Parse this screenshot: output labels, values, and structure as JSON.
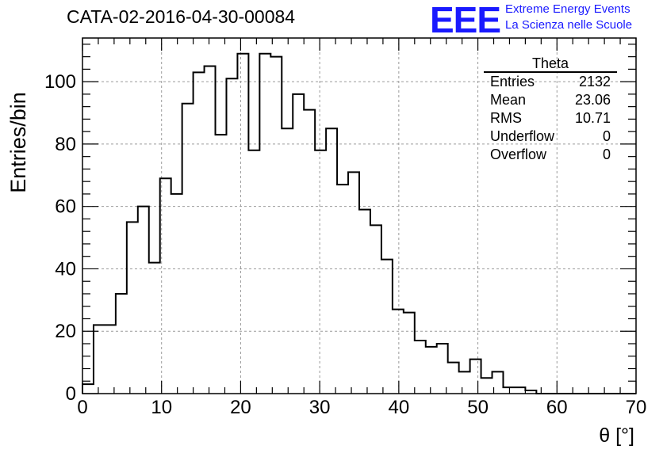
{
  "header": {
    "title": "CATA-02-2016-04-30-00084",
    "logo": "EEE",
    "logo_line1": "Extreme Energy Events",
    "logo_line2": "La Scienza nelle Scuole"
  },
  "stats": {
    "title": "Theta",
    "rows": [
      {
        "label": "Entries",
        "value": "2132"
      },
      {
        "label": "Mean",
        "value": "23.06"
      },
      {
        "label": "RMS",
        "value": "10.71"
      },
      {
        "label": "Underflow",
        "value": "0"
      },
      {
        "label": "Overflow",
        "value": "0"
      }
    ]
  },
  "chart_data": {
    "type": "bar",
    "histogram": true,
    "xlabel": "θ [°]",
    "ylabel": "Entries/bin",
    "xlim": [
      0,
      70
    ],
    "ylim": [
      0,
      114
    ],
    "grid": true,
    "bin_width": 1.4,
    "x_ticks": [
      0,
      10,
      20,
      30,
      40,
      50,
      60,
      70
    ],
    "y_ticks": [
      0,
      20,
      40,
      60,
      80,
      100
    ],
    "values": [
      3,
      22,
      22,
      32,
      55,
      60,
      42,
      69,
      64,
      93,
      103,
      105,
      83,
      101,
      109,
      78,
      109,
      108,
      85,
      96,
      91,
      78,
      85,
      67,
      71,
      59,
      54,
      43,
      27,
      26,
      17,
      15,
      16,
      10,
      7,
      11,
      5,
      7,
      2,
      2,
      1,
      0,
      0,
      0,
      0,
      0,
      0,
      0,
      0,
      0
    ],
    "colors": {
      "line": "#000000",
      "grid": "#9a9a9a",
      "logo": "#1a1aff"
    }
  }
}
